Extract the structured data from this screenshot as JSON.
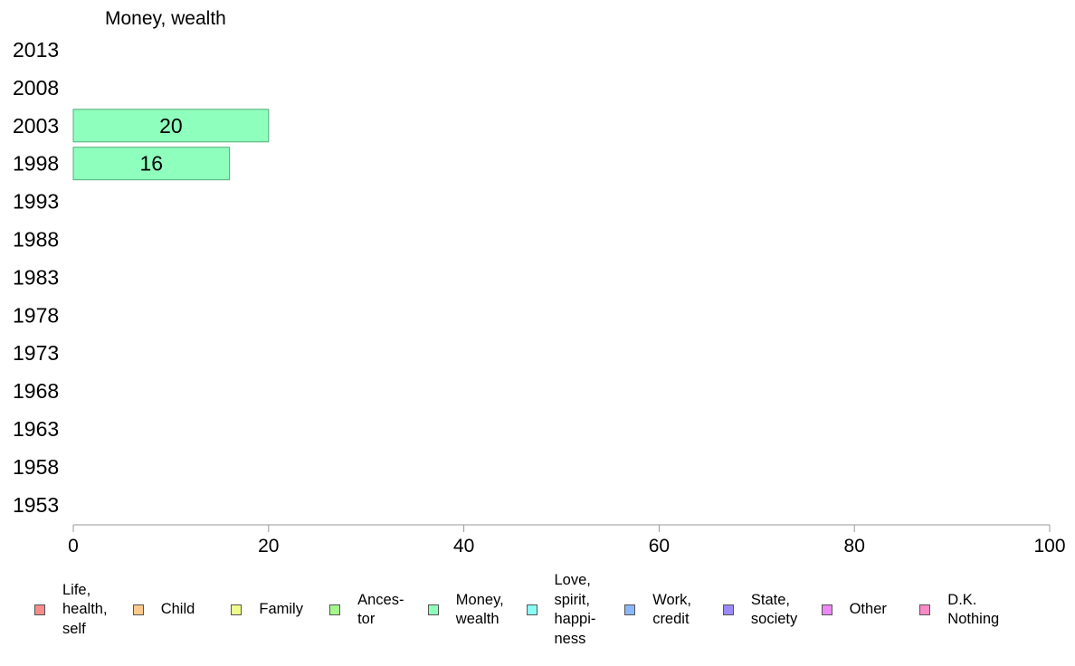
{
  "chart_data": {
    "type": "bar",
    "orientation": "horizontal",
    "title": "Money, wealth",
    "categories": [
      "2013",
      "2008",
      "2003",
      "1998",
      "1993",
      "1988",
      "1983",
      "1978",
      "1973",
      "1968",
      "1963",
      "1958",
      "1953"
    ],
    "values": [
      null,
      null,
      20,
      16,
      null,
      null,
      null,
      null,
      null,
      null,
      null,
      null,
      null
    ],
    "value_labels": [
      "",
      "",
      "20",
      "16",
      "",
      "",
      "",
      "",
      "",
      "",
      "",
      "",
      ""
    ],
    "xlim": [
      0,
      100
    ],
    "xticks": [
      0,
      20,
      40,
      60,
      80,
      100
    ],
    "xtick_labels": [
      "0",
      "20",
      "40",
      "60",
      "80",
      "100"
    ],
    "bar_color": "#8fffbd",
    "bar_edge_color": "#4fae78",
    "grid": false,
    "legend_position": "bottom",
    "legend": [
      {
        "label": "Life,\nhealth,\nself",
        "color": "#f88b8b"
      },
      {
        "label": "Child",
        "color": "#fcc98a"
      },
      {
        "label": "Family",
        "color": "#eefc8a"
      },
      {
        "label": "Ances-\ntor",
        "color": "#a5f78a"
      },
      {
        "label": "Money,\nwealth",
        "color": "#8fffbd"
      },
      {
        "label": "Love,\nspirit,\nhappi-\nness",
        "color": "#8afcf6"
      },
      {
        "label": "Work,\ncredit",
        "color": "#8ab6fa"
      },
      {
        "label": "State,\nsociety",
        "color": "#9b8af7"
      },
      {
        "label": "Other",
        "color": "#ea8af5"
      },
      {
        "label": "D.K.\nNothing",
        "color": "#fa8ac6"
      }
    ]
  }
}
